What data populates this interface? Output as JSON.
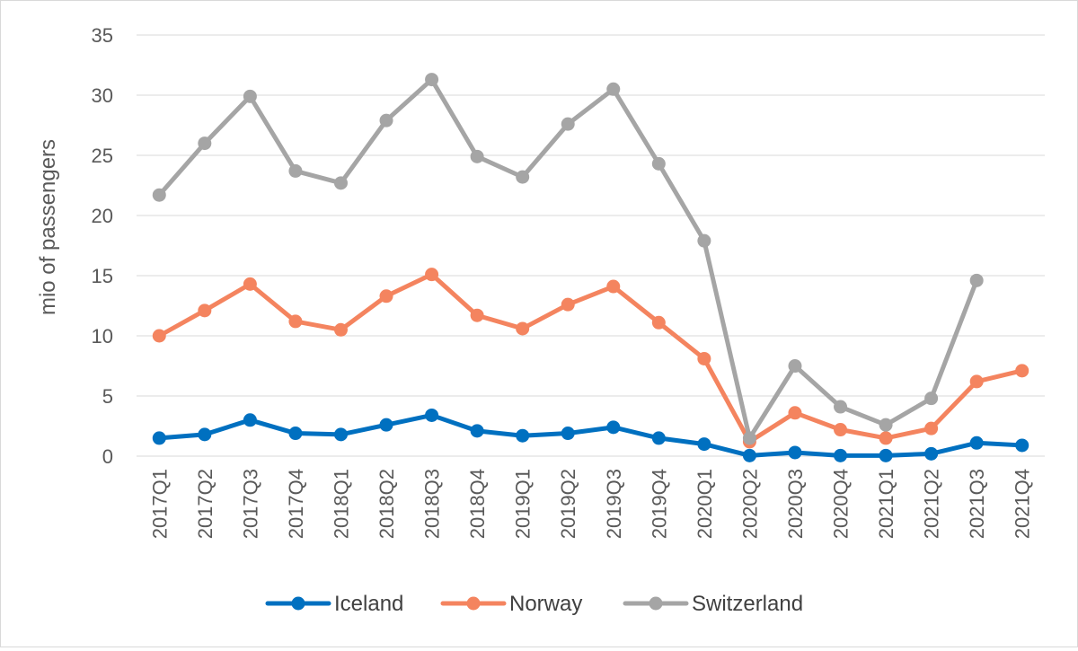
{
  "chart_data": {
    "type": "line",
    "ylabel": "mio of passengers",
    "ylim": [
      0,
      35
    ],
    "yticks": [
      0,
      5,
      10,
      15,
      20,
      25,
      30,
      35
    ],
    "grid": true,
    "legend_position": "bottom",
    "categories": [
      "2017Q1",
      "2017Q2",
      "2017Q3",
      "2017Q4",
      "2018Q1",
      "2018Q2",
      "2018Q3",
      "2018Q4",
      "2019Q1",
      "2019Q2",
      "2019Q3",
      "2019Q4",
      "2020Q1",
      "2020Q2",
      "2020Q3",
      "2020Q4",
      "2021Q1",
      "2021Q2",
      "2021Q3",
      "2021Q4"
    ],
    "series": [
      {
        "name": "Iceland",
        "color": "#0070C0",
        "values": [
          1.5,
          1.8,
          3.0,
          1.9,
          1.8,
          2.6,
          3.4,
          2.1,
          1.7,
          1.9,
          2.4,
          1.5,
          1.0,
          0.05,
          0.3,
          0.05,
          0.05,
          0.2,
          1.1,
          0.9
        ]
      },
      {
        "name": "Norway",
        "color": "#F4845F",
        "values": [
          10.0,
          12.1,
          14.3,
          11.2,
          10.5,
          13.3,
          15.1,
          11.7,
          10.6,
          12.6,
          14.1,
          11.1,
          8.1,
          1.2,
          3.6,
          2.2,
          1.5,
          2.3,
          6.2,
          7.1
        ]
      },
      {
        "name": "Switzerland",
        "color": "#A5A5A5",
        "values": [
          21.7,
          26.0,
          29.9,
          23.7,
          22.7,
          27.9,
          31.3,
          24.9,
          23.2,
          27.6,
          30.5,
          24.3,
          17.9,
          1.5,
          7.5,
          4.1,
          2.6,
          4.8,
          14.6,
          null
        ]
      }
    ]
  }
}
